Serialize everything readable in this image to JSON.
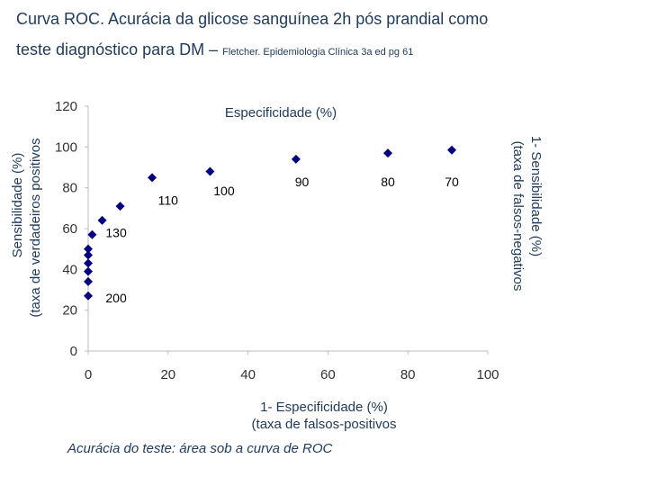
{
  "header": {
    "title_line1": "Curva ROC. Acurácia da glicose sanguínea 2h pós prandial como",
    "title_line2": "teste diagnóstico para DM –",
    "citation": "Fletcher. Epidemiologia Clínica 3a ed pg 61"
  },
  "chart_data": {
    "type": "scatter",
    "top_axis_label": "Especificidade (%)",
    "xlabel_line1": "1- Especificidade (%)",
    "xlabel_line2": "(taxa de falsos-positivos",
    "ylabel_line1": "Sensibilidade (%)",
    "ylabel_line2": "(taxa de verdadeiros positivos",
    "right_label_line1": "1- Sensibilidade (%)",
    "right_label_line2": "(taxa de falsos-negativos",
    "xlim": [
      0,
      100
    ],
    "ylim": [
      0,
      120
    ],
    "xticks": [
      0,
      20,
      40,
      60,
      80,
      100
    ],
    "yticks": [
      0,
      20,
      40,
      60,
      80,
      100,
      120
    ],
    "grid": false,
    "marker_color": "#000080",
    "points": [
      {
        "x": 0,
        "y": 27
      },
      {
        "x": 0,
        "y": 34
      },
      {
        "x": 0,
        "y": 39
      },
      {
        "x": 0,
        "y": 43
      },
      {
        "x": 0,
        "y": 47
      },
      {
        "x": 0,
        "y": 50
      },
      {
        "x": 1,
        "y": 57
      },
      {
        "x": 3.5,
        "y": 64
      },
      {
        "x": 8,
        "y": 71
      },
      {
        "x": 16,
        "y": 85
      },
      {
        "x": 30.5,
        "y": 88
      },
      {
        "x": 52,
        "y": 94
      },
      {
        "x": 75,
        "y": 97
      },
      {
        "x": 91,
        "y": 98.5
      }
    ],
    "annotations": [
      {
        "text": "200",
        "x": 7,
        "y": 26
      },
      {
        "text": "130",
        "x": 7,
        "y": 58
      },
      {
        "text": "110",
        "x": 20,
        "y": 74
      },
      {
        "text": "100",
        "x": 34,
        "y": 78.5
      },
      {
        "text": "90",
        "x": 53.5,
        "y": 83
      },
      {
        "text": "80",
        "x": 75,
        "y": 83
      },
      {
        "text": "70",
        "x": 91,
        "y": 83
      }
    ]
  },
  "footer": {
    "caption": "Acurácia do teste: área sob a curva de ROC"
  }
}
